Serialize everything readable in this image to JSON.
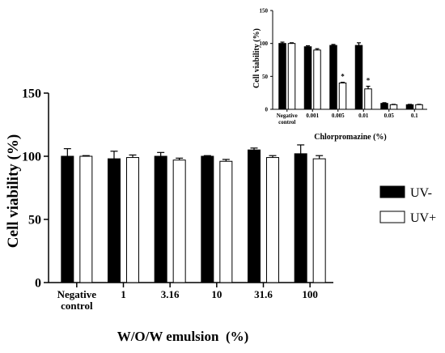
{
  "legend": {
    "items": [
      {
        "label": "UV-",
        "fill": "#000000"
      },
      {
        "label": "UV+",
        "fill": "#ffffff"
      }
    ],
    "placement": "right"
  },
  "chart_data": [
    {
      "type": "bar",
      "title": "",
      "xlabel": "W/O/W emulsion  (%)",
      "ylabel": "Cell viability (%)",
      "ylim": [
        0,
        150
      ],
      "yticks": [
        0,
        50,
        100,
        150
      ],
      "categories": [
        [
          "Negative",
          "control"
        ],
        [
          "1"
        ],
        [
          "3.16"
        ],
        [
          "10"
        ],
        [
          "31.6"
        ],
        [
          "100"
        ]
      ],
      "series": [
        {
          "name": "UV-",
          "color": "#000000",
          "values": [
            100,
            98,
            100,
            100,
            105,
            102
          ],
          "errors": [
            6,
            6,
            3,
            0.5,
            1.5,
            7
          ]
        },
        {
          "name": "UV+",
          "color": "#ffffff",
          "values": [
            100,
            99,
            97,
            96,
            99,
            98
          ],
          "errors": [
            0.5,
            2,
            1.5,
            1.5,
            1.5,
            2.5
          ]
        }
      ],
      "grid": false
    },
    {
      "type": "bar",
      "title": "",
      "xlabel": "Chlorpromazine (%)",
      "ylabel": "Cell viability (%)",
      "ylim": [
        0,
        150
      ],
      "yticks": [
        0,
        50,
        100,
        150
      ],
      "categories": [
        [
          "Negative",
          "control"
        ],
        [
          "0.001"
        ],
        [
          "0.005"
        ],
        [
          "0.01"
        ],
        [
          "0.05"
        ],
        [
          "0.1"
        ]
      ],
      "series": [
        {
          "name": "UV-",
          "color": "#000000",
          "values": [
            100,
            95,
            97,
            97,
            9,
            7
          ],
          "errors": [
            2,
            1.5,
            1.5,
            4,
            1,
            0.5
          ]
        },
        {
          "name": "UV+",
          "color": "#ffffff",
          "values": [
            100,
            90,
            40,
            31,
            7,
            7
          ],
          "errors": [
            1,
            2,
            1,
            4,
            0.5,
            0.5
          ]
        }
      ],
      "annotations": [
        {
          "category_index": 2,
          "series": "UV+",
          "text": "*"
        },
        {
          "category_index": 3,
          "series": "UV+",
          "text": "*"
        }
      ],
      "grid": false
    }
  ]
}
